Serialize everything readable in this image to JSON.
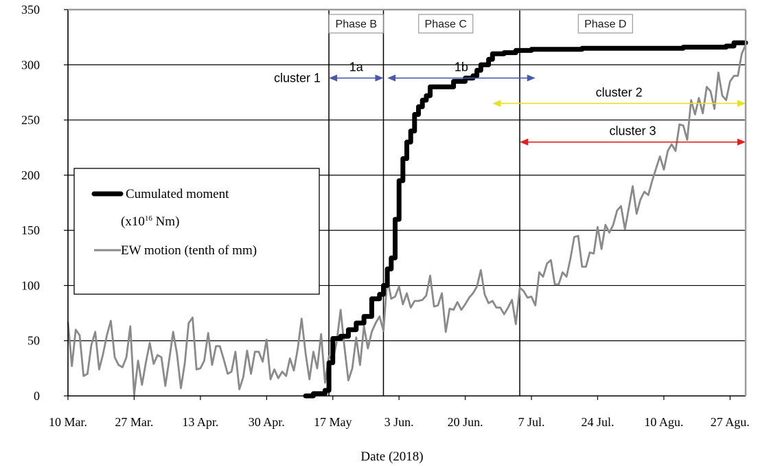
{
  "chart_data": {
    "type": "line",
    "xlabel": "Date (2018)",
    "ylabel": "",
    "ylim": [
      0,
      350
    ],
    "yticks": [
      0,
      50,
      100,
      150,
      200,
      250,
      300,
      350
    ],
    "xrange": [
      "2018-03-10",
      "2018-08-31"
    ],
    "xtick_labels": [
      "10 Mar.",
      "27 Mar.",
      "13 Apr.",
      "30 Apr.",
      "17 May",
      "3 Jun.",
      "20 Jun.",
      "7 Jul.",
      "24 Jul.",
      "10 Agu.",
      "27 Agu."
    ],
    "xtick_dates": [
      "2018-03-10",
      "2018-03-27",
      "2018-04-13",
      "2018-04-30",
      "2018-05-17",
      "2018-06-03",
      "2018-06-20",
      "2018-07-07",
      "2018-07-24",
      "2018-08-10",
      "2018-08-27"
    ],
    "grid": "horizontal",
    "legend": {
      "placement": "left-middle",
      "entries": [
        {
          "line1": "Cumulated moment",
          "unit_prefix": "(x10",
          "unit_exp": "16",
          "unit_suffix": " Nm)",
          "color": "#000000"
        },
        {
          "line1": "EW motion (tenth of mm)",
          "color": "#8a8a8a"
        }
      ]
    },
    "phase_lines": [
      "2018-05-16",
      "2018-05-30",
      "2018-07-04"
    ],
    "phase_labels": [
      {
        "text": "Phase B",
        "date": "2018-05-23"
      },
      {
        "text": "Phase C",
        "date": "2018-06-15"
      },
      {
        "text": "Phase D",
        "date": "2018-07-26"
      }
    ],
    "clusters": [
      {
        "label": "cluster 1",
        "sub": "1a",
        "from": "2018-05-16",
        "to": "2018-05-30",
        "y": 288,
        "color": "#4a5aa8"
      },
      {
        "label": "",
        "sub": "1b",
        "from": "2018-05-31",
        "to": "2018-07-08",
        "y": 288,
        "color": "#4a5aa8"
      },
      {
        "label": "cluster 2",
        "sub": "",
        "from": "2018-06-27",
        "to": "2018-08-31",
        "y": 265,
        "color": "#e8e020"
      },
      {
        "label": "cluster 3",
        "sub": "",
        "from": "2018-07-04",
        "to": "2018-08-31",
        "y": 230,
        "color": "#e02020"
      }
    ],
    "series": [
      {
        "name": "Cumulated moment",
        "color": "#000000",
        "style": "step",
        "points": [
          [
            "2018-05-10",
            0
          ],
          [
            "2018-05-12",
            2
          ],
          [
            "2018-05-14",
            2
          ],
          [
            "2018-05-15",
            5
          ],
          [
            "2018-05-16",
            30
          ],
          [
            "2018-05-17",
            52
          ],
          [
            "2018-05-19",
            54
          ],
          [
            "2018-05-21",
            60
          ],
          [
            "2018-05-23",
            66
          ],
          [
            "2018-05-25",
            72
          ],
          [
            "2018-05-27",
            88
          ],
          [
            "2018-05-29",
            92
          ],
          [
            "2018-05-30",
            100
          ],
          [
            "2018-05-31",
            115
          ],
          [
            "2018-06-01",
            125
          ],
          [
            "2018-06-02",
            160
          ],
          [
            "2018-06-03",
            195
          ],
          [
            "2018-06-04",
            215
          ],
          [
            "2018-06-05",
            230
          ],
          [
            "2018-06-06",
            240
          ],
          [
            "2018-06-07",
            255
          ],
          [
            "2018-06-08",
            262
          ],
          [
            "2018-06-09",
            268
          ],
          [
            "2018-06-10",
            272
          ],
          [
            "2018-06-11",
            280
          ],
          [
            "2018-06-14",
            280
          ],
          [
            "2018-06-17",
            285
          ],
          [
            "2018-06-20",
            288
          ],
          [
            "2018-06-22",
            290
          ],
          [
            "2018-06-23",
            295
          ],
          [
            "2018-06-24",
            300
          ],
          [
            "2018-06-26",
            305
          ],
          [
            "2018-06-27",
            310
          ],
          [
            "2018-06-30",
            311
          ],
          [
            "2018-07-03",
            313
          ],
          [
            "2018-07-07",
            314
          ],
          [
            "2018-07-20",
            315
          ],
          [
            "2018-08-05",
            315
          ],
          [
            "2018-08-15",
            316
          ],
          [
            "2018-08-26",
            317
          ],
          [
            "2018-08-28",
            320
          ],
          [
            "2018-08-31",
            320
          ]
        ]
      },
      {
        "name": "EW motion (tenth of mm)",
        "color": "#8a8a8a",
        "style": "line",
        "points": [
          [
            "2018-03-10",
            67
          ],
          [
            "2018-03-11",
            27
          ],
          [
            "2018-03-12",
            60
          ],
          [
            "2018-03-13",
            55
          ],
          [
            "2018-03-14",
            18
          ],
          [
            "2018-03-15",
            20
          ],
          [
            "2018-03-16",
            46
          ],
          [
            "2018-03-17",
            58
          ],
          [
            "2018-03-18",
            24
          ],
          [
            "2018-03-19",
            38
          ],
          [
            "2018-03-20",
            55
          ],
          [
            "2018-03-21",
            68
          ],
          [
            "2018-03-22",
            35
          ],
          [
            "2018-03-23",
            28
          ],
          [
            "2018-03-24",
            26
          ],
          [
            "2018-03-25",
            35
          ],
          [
            "2018-03-26",
            63
          ],
          [
            "2018-03-27",
            1
          ],
          [
            "2018-03-28",
            32
          ],
          [
            "2018-03-29",
            10
          ],
          [
            "2018-03-30",
            30
          ],
          [
            "2018-03-31",
            48
          ],
          [
            "2018-04-01",
            29
          ],
          [
            "2018-04-02",
            37
          ],
          [
            "2018-04-03",
            35
          ],
          [
            "2018-04-04",
            9
          ],
          [
            "2018-04-05",
            33
          ],
          [
            "2018-04-06",
            58
          ],
          [
            "2018-04-07",
            38
          ],
          [
            "2018-04-08",
            7
          ],
          [
            "2018-04-09",
            30
          ],
          [
            "2018-04-10",
            66
          ],
          [
            "2018-04-11",
            71
          ],
          [
            "2018-04-12",
            24
          ],
          [
            "2018-04-13",
            25
          ],
          [
            "2018-04-14",
            32
          ],
          [
            "2018-04-15",
            57
          ],
          [
            "2018-04-16",
            28
          ],
          [
            "2018-04-17",
            45
          ],
          [
            "2018-04-18",
            45
          ],
          [
            "2018-04-19",
            33
          ],
          [
            "2018-04-20",
            20
          ],
          [
            "2018-04-21",
            22
          ],
          [
            "2018-04-22",
            40
          ],
          [
            "2018-04-23",
            6
          ],
          [
            "2018-04-24",
            17
          ],
          [
            "2018-04-25",
            41
          ],
          [
            "2018-04-26",
            20
          ],
          [
            "2018-04-27",
            40
          ],
          [
            "2018-04-28",
            40
          ],
          [
            "2018-04-29",
            31
          ],
          [
            "2018-04-30",
            51
          ],
          [
            "2018-05-01",
            15
          ],
          [
            "2018-05-02",
            24
          ],
          [
            "2018-05-03",
            16
          ],
          [
            "2018-05-04",
            22
          ],
          [
            "2018-05-05",
            18
          ],
          [
            "2018-05-06",
            34
          ],
          [
            "2018-05-07",
            23
          ],
          [
            "2018-05-08",
            43
          ],
          [
            "2018-05-09",
            70
          ],
          [
            "2018-05-10",
            39
          ],
          [
            "2018-05-11",
            15
          ],
          [
            "2018-05-12",
            40
          ],
          [
            "2018-05-13",
            25
          ],
          [
            "2018-05-14",
            56
          ],
          [
            "2018-05-15",
            12
          ],
          [
            "2018-05-16",
            36
          ],
          [
            "2018-05-17",
            32
          ],
          [
            "2018-05-18",
            49
          ],
          [
            "2018-05-19",
            78
          ],
          [
            "2018-05-20",
            44
          ],
          [
            "2018-05-21",
            14
          ],
          [
            "2018-05-22",
            25
          ],
          [
            "2018-05-23",
            53
          ],
          [
            "2018-05-24",
            28
          ],
          [
            "2018-05-25",
            63
          ],
          [
            "2018-05-26",
            43
          ],
          [
            "2018-05-27",
            58
          ],
          [
            "2018-05-28",
            66
          ],
          [
            "2018-05-29",
            72
          ],
          [
            "2018-05-30",
            59
          ],
          [
            "2018-05-31",
            107
          ],
          [
            "2018-06-01",
            88
          ],
          [
            "2018-06-02",
            90
          ],
          [
            "2018-06-03",
            99
          ],
          [
            "2018-06-04",
            83
          ],
          [
            "2018-06-05",
            93
          ],
          [
            "2018-06-06",
            80
          ],
          [
            "2018-06-07",
            86
          ],
          [
            "2018-06-08",
            86
          ],
          [
            "2018-06-09",
            87
          ],
          [
            "2018-06-10",
            91
          ],
          [
            "2018-06-11",
            109
          ],
          [
            "2018-06-12",
            81
          ],
          [
            "2018-06-13",
            82
          ],
          [
            "2018-06-14",
            93
          ],
          [
            "2018-06-15",
            58
          ],
          [
            "2018-06-16",
            79
          ],
          [
            "2018-06-17",
            78
          ],
          [
            "2018-06-18",
            85
          ],
          [
            "2018-06-19",
            78
          ],
          [
            "2018-06-20",
            83
          ],
          [
            "2018-06-21",
            89
          ],
          [
            "2018-06-22",
            93
          ],
          [
            "2018-06-23",
            99
          ],
          [
            "2018-06-24",
            114
          ],
          [
            "2018-06-25",
            92
          ],
          [
            "2018-06-26",
            84
          ],
          [
            "2018-06-27",
            86
          ],
          [
            "2018-06-28",
            80
          ],
          [
            "2018-06-29",
            80
          ],
          [
            "2018-06-30",
            74
          ],
          [
            "2018-07-01",
            80
          ],
          [
            "2018-07-02",
            87
          ],
          [
            "2018-07-03",
            65
          ],
          [
            "2018-07-04",
            98
          ],
          [
            "2018-07-05",
            95
          ],
          [
            "2018-07-06",
            89
          ],
          [
            "2018-07-07",
            90
          ],
          [
            "2018-07-08",
            82
          ],
          [
            "2018-07-09",
            112
          ],
          [
            "2018-07-10",
            108
          ],
          [
            "2018-07-11",
            120
          ],
          [
            "2018-07-12",
            123
          ],
          [
            "2018-07-13",
            101
          ],
          [
            "2018-07-14",
            101
          ],
          [
            "2018-07-15",
            112
          ],
          [
            "2018-07-16",
            108
          ],
          [
            "2018-07-17",
            124
          ],
          [
            "2018-07-18",
            144
          ],
          [
            "2018-07-19",
            145
          ],
          [
            "2018-07-20",
            117
          ],
          [
            "2018-07-21",
            117
          ],
          [
            "2018-07-22",
            130
          ],
          [
            "2018-07-23",
            129
          ],
          [
            "2018-07-24",
            153
          ],
          [
            "2018-07-25",
            133
          ],
          [
            "2018-07-26",
            155
          ],
          [
            "2018-07-27",
            148
          ],
          [
            "2018-07-28",
            155
          ],
          [
            "2018-07-29",
            168
          ],
          [
            "2018-07-30",
            172
          ],
          [
            "2018-07-31",
            151
          ],
          [
            "2018-08-01",
            170
          ],
          [
            "2018-08-02",
            190
          ],
          [
            "2018-08-03",
            165
          ],
          [
            "2018-08-04",
            178
          ],
          [
            "2018-08-05",
            185
          ],
          [
            "2018-08-06",
            182
          ],
          [
            "2018-08-07",
            195
          ],
          [
            "2018-08-08",
            206
          ],
          [
            "2018-08-09",
            217
          ],
          [
            "2018-08-10",
            205
          ],
          [
            "2018-08-11",
            222
          ],
          [
            "2018-08-12",
            228
          ],
          [
            "2018-08-13",
            222
          ],
          [
            "2018-08-14",
            246
          ],
          [
            "2018-08-15",
            245
          ],
          [
            "2018-08-16",
            232
          ],
          [
            "2018-08-17",
            268
          ],
          [
            "2018-08-18",
            255
          ],
          [
            "2018-08-19",
            270
          ],
          [
            "2018-08-20",
            256
          ],
          [
            "2018-08-21",
            280
          ],
          [
            "2018-08-22",
            276
          ],
          [
            "2018-08-23",
            260
          ],
          [
            "2018-08-24",
            293
          ],
          [
            "2018-08-25",
            272
          ],
          [
            "2018-08-26",
            268
          ],
          [
            "2018-08-27",
            285
          ],
          [
            "2018-08-28",
            290
          ],
          [
            "2018-08-29",
            290
          ],
          [
            "2018-08-30",
            310
          ],
          [
            "2018-08-31",
            318
          ]
        ]
      }
    ]
  }
}
